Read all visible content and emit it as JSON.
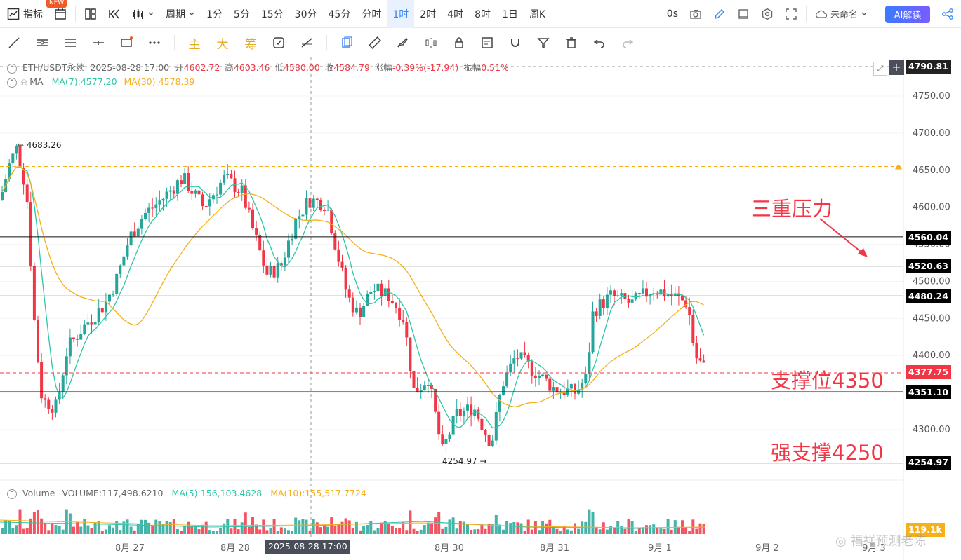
{
  "topbar": {
    "indicator_label": "指标",
    "new_badge": "NEW",
    "period_label": "周期",
    "timeframes": [
      "1分",
      "5分",
      "15分",
      "30分",
      "45分",
      "分时",
      "1时",
      "2时",
      "4时",
      "8时",
      "1日",
      "周K"
    ],
    "active_timeframe": "1时",
    "countdown": "0s",
    "layout_name": "未命名",
    "ai_label": "AI解读"
  },
  "drawbar": {
    "main_label": "主",
    "big_label": "大",
    "chip_label": "筹"
  },
  "header": {
    "symbol": "ETH/USDT永续",
    "datetime": "2025-08-28 17:00",
    "open_label": "开",
    "open": "4602.72",
    "high_label": "高",
    "high": "4603.46",
    "low_label": "低",
    "low": "4580.00",
    "close_label": "收",
    "close": "4584.79",
    "change_label": "涨幅",
    "change": "-0.39%(-17.94)",
    "amplitude_label": "振幅",
    "amplitude": "0.51%",
    "ma_label": "MA",
    "ma7": "MA(7):4577.20",
    "ma30": "MA(30):4578.39"
  },
  "price_axis": {
    "ticks": [
      "4750.00",
      "4700.00",
      "4650.00",
      "4600.00",
      "4550.00",
      "4500.00",
      "4450.00",
      "4400.00",
      "4300.00"
    ],
    "crosshair_price": "4790.81",
    "current_price": "4377.75",
    "levels": [
      "4560.04",
      "4520.63",
      "4480.24",
      "4351.10",
      "4254.97"
    ],
    "volume_label": "119.1k"
  },
  "time_axis": {
    "labels": [
      "8月 27",
      "8月 28",
      "8月 30",
      "8月 31",
      "9月 1",
      "9月 2",
      "9月 3"
    ],
    "crosshair_time": "2025-08-28 17:00"
  },
  "markers": {
    "high_marker": "4683.26",
    "low_marker": "4254.97"
  },
  "annotations": {
    "resistance": "三重压力",
    "support": "支撑位4350",
    "strong_support": "强支撑4250"
  },
  "volume": {
    "title": "Volume",
    "value": "VOLUME:117,498.6210",
    "ma5": "MA(5):156,103.4628",
    "ma10": "MA(10):155,517.7724"
  },
  "watermark": "福祥预测老陈",
  "colors": {
    "up": "#26a69a",
    "down": "#f23645",
    "ma7": "#2ec7a6",
    "ma30": "#f5b01a",
    "accent": "#3a86f5"
  },
  "chart_data": {
    "type": "candlestick",
    "series": [
      {
        "name": "ETH/USDT永续",
        "values": []
      },
      {
        "name": "MA(7)",
        "values": []
      },
      {
        "name": "MA(30)",
        "values": []
      }
    ],
    "horizontal_levels": [
      4560.04,
      4520.63,
      4480.24,
      4351.1,
      4254.97
    ],
    "alert_level": 4655,
    "ylim": [
      4240,
      4800
    ]
  }
}
